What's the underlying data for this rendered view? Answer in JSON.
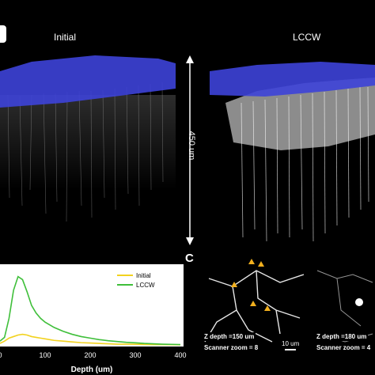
{
  "panel_top": {
    "label_left": "Initial",
    "label_right": "LCCW",
    "scale_text": "450 um"
  },
  "chart_data": {
    "type": "line",
    "xlabel": "Depth (um)",
    "ylabel": "",
    "xlim": [
      0,
      400
    ],
    "ylim": [
      0,
      1
    ],
    "x_ticks": [
      "0",
      "100",
      "200",
      "300",
      "400"
    ],
    "legend_placement": "top-right",
    "series": [
      {
        "name": "Initial",
        "color": "#f2d21e",
        "x": [
          0,
          10,
          20,
          30,
          40,
          50,
          60,
          70,
          80,
          90,
          100,
          120,
          140,
          160,
          180,
          200,
          220,
          240,
          260,
          280,
          300,
          320,
          340,
          360,
          380,
          400
        ],
        "y": [
          0.02,
          0.05,
          0.09,
          0.11,
          0.13,
          0.14,
          0.13,
          0.11,
          0.1,
          0.09,
          0.08,
          0.06,
          0.05,
          0.04,
          0.03,
          0.025,
          0.02,
          0.015,
          0.01,
          0.01,
          0.008,
          0.006,
          0.005,
          0.004,
          0.003,
          0.002
        ]
      },
      {
        "name": "LCCW",
        "color": "#3fbf3a",
        "x": [
          0,
          10,
          20,
          30,
          40,
          50,
          60,
          70,
          80,
          90,
          100,
          120,
          140,
          160,
          180,
          200,
          220,
          240,
          260,
          280,
          300,
          320,
          340,
          360,
          380,
          400
        ],
        "y": [
          0.05,
          0.1,
          0.35,
          0.72,
          0.9,
          0.86,
          0.7,
          0.52,
          0.42,
          0.35,
          0.3,
          0.23,
          0.18,
          0.14,
          0.11,
          0.09,
          0.07,
          0.055,
          0.045,
          0.035,
          0.028,
          0.02,
          0.015,
          0.01,
          0.007,
          0.005
        ]
      }
    ]
  },
  "panel_c": {
    "label": "C",
    "image1_depth": "Z depth =150 um",
    "image1_zoom": "Scanner zoom = 8",
    "image2_depth": "Z depth =180 um",
    "image2_zoom": "Scanner zoom = 4",
    "scalebar_text": "10 um"
  },
  "colors": {
    "overlay_blue": "#3d43d8",
    "background": "#000000"
  }
}
